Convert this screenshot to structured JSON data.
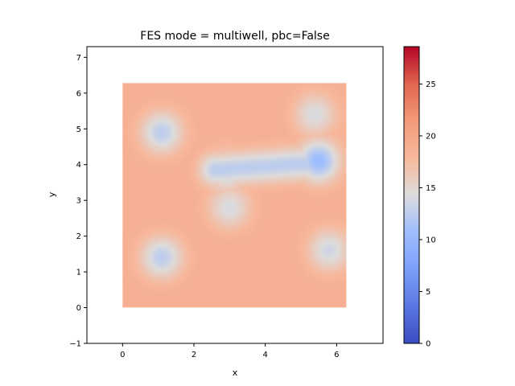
{
  "chart_data": [
    {
      "type": "heatmap",
      "title": "FES mode = multiwell, pbc=False",
      "xlabel": "x",
      "ylabel": "y",
      "xlim": [
        -1.0,
        7.3
      ],
      "ylim": [
        -1.0,
        7.3
      ],
      "x_ticks": [
        0,
        2,
        4,
        6
      ],
      "y_ticks": [
        -1,
        0,
        1,
        2,
        3,
        4,
        5,
        6,
        7
      ],
      "data_extent": {
        "x": [
          0,
          6.28
        ],
        "y": [
          0,
          6.28
        ]
      },
      "colormap": "coolwarm",
      "background_level": 19,
      "edge_level": 22,
      "wells": [
        {
          "x": 1.1,
          "y": 4.9,
          "level": 12.5
        },
        {
          "x": 1.1,
          "y": 1.4,
          "level": 12.5
        },
        {
          "x": 5.5,
          "y": 4.1,
          "level": 10.5
        },
        {
          "x": 5.8,
          "y": 1.6,
          "level": 13.5
        },
        {
          "x": 3.0,
          "y": 2.8,
          "level": 14
        },
        {
          "x": 2.9,
          "y": 3.8,
          "level": 13.5
        },
        {
          "x": 5.4,
          "y": 5.4,
          "level": 14
        }
      ],
      "channels": [
        {
          "from": [
            2.6,
            3.85
          ],
          "to": [
            5.4,
            4.05
          ],
          "level": 12.5
        }
      ],
      "grid": false
    },
    {
      "type": "colorbar",
      "range": [
        0,
        28.6
      ],
      "ticks": [
        0,
        5,
        10,
        15,
        20,
        25
      ],
      "colormap": "coolwarm"
    }
  ]
}
